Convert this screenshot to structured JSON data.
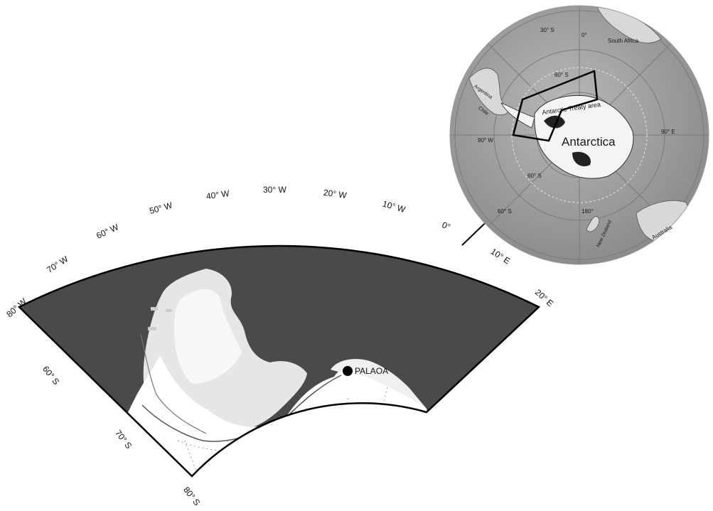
{
  "sector_map": {
    "longitude_labels": [
      "80° W",
      "70° W",
      "60° W",
      "50° W",
      "40° W",
      "30° W",
      "20° W",
      "10° W",
      "0°",
      "10° E",
      "20° E"
    ],
    "latitude_labels": [
      "60° S",
      "70° S",
      "80° S"
    ],
    "station": {
      "label": "PALAOA"
    },
    "colors": {
      "ocean": "#4a4a4a",
      "ice": "#f2f2f2",
      "shelf": "#ffffff",
      "outline": "#000000"
    }
  },
  "globe": {
    "title": "Antarctica",
    "treaty_label": "Antarctic Treaty area",
    "longitude_labels": [
      "0°",
      "90° W",
      "90° E",
      "180°"
    ],
    "latitude_labels": [
      "30° S",
      "60° S",
      "60° S",
      "60° S"
    ],
    "countries": [
      "South Africa",
      "Argentina",
      "Chile",
      "Australia",
      "New Zealand"
    ]
  }
}
